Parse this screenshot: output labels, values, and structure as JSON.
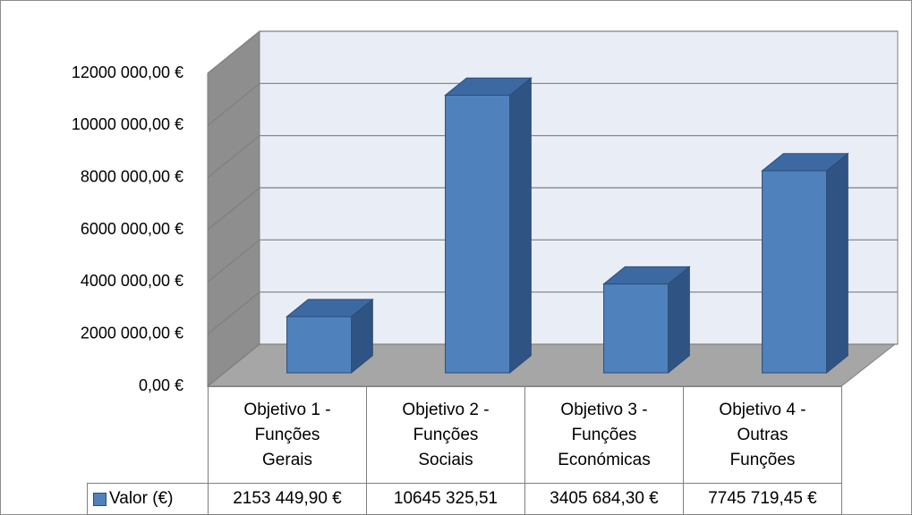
{
  "chart_data": {
    "type": "bar3d",
    "categories": [
      "Objetivo 1 - Funções Gerais",
      "Objetivo 2 - Funções Sociais",
      "Objetivo 3 - Funções Económicas",
      "Objetivo 4 - Outras Funções"
    ],
    "series": [
      {
        "name": "Valor (€)",
        "color": "#4f81bd",
        "values": [
          2153449.9,
          10645325.51,
          3405684.3,
          7745719.45
        ],
        "value_labels": [
          "2153 449,90 €",
          "10645 325,51",
          "3405 684,30 €",
          "7745 719,45 €"
        ]
      }
    ],
    "ylim": [
      0,
      12000000
    ],
    "yticks": [
      {
        "value": 0,
        "label": "0,00 €"
      },
      {
        "value": 2000000,
        "label": "2000 000,00 €"
      },
      {
        "value": 4000000,
        "label": "4000 000,00 €"
      },
      {
        "value": 6000000,
        "label": "6000 000,00 €"
      },
      {
        "value": 8000000,
        "label": "8000 000,00 €"
      },
      {
        "value": 10000000,
        "label": "10000 000,00 €"
      },
      {
        "value": 12000000,
        "label": "12000 000,00 €"
      }
    ],
    "grid": true
  }
}
